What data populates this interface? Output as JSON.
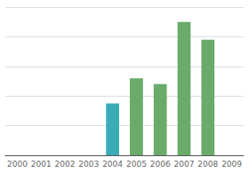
{
  "chart_data": {
    "type": "bar",
    "categories": [
      "2000",
      "2001",
      "2002",
      "2003",
      "2004",
      "2005",
      "2006",
      "2007",
      "2008",
      "2009"
    ],
    "values": [
      0,
      0,
      0,
      0,
      35,
      52,
      48,
      90,
      78,
      0
    ],
    "colors": [
      "none",
      "none",
      "none",
      "none",
      "#3aacb5",
      "#6aaa6a",
      "#6aaa6a",
      "#6aaa6a",
      "#6aaa6a",
      "none"
    ],
    "ylim": [
      0,
      100
    ],
    "yticks": [
      0,
      20,
      40,
      60,
      80,
      100
    ],
    "grid": true,
    "tick_labels": "x"
  }
}
